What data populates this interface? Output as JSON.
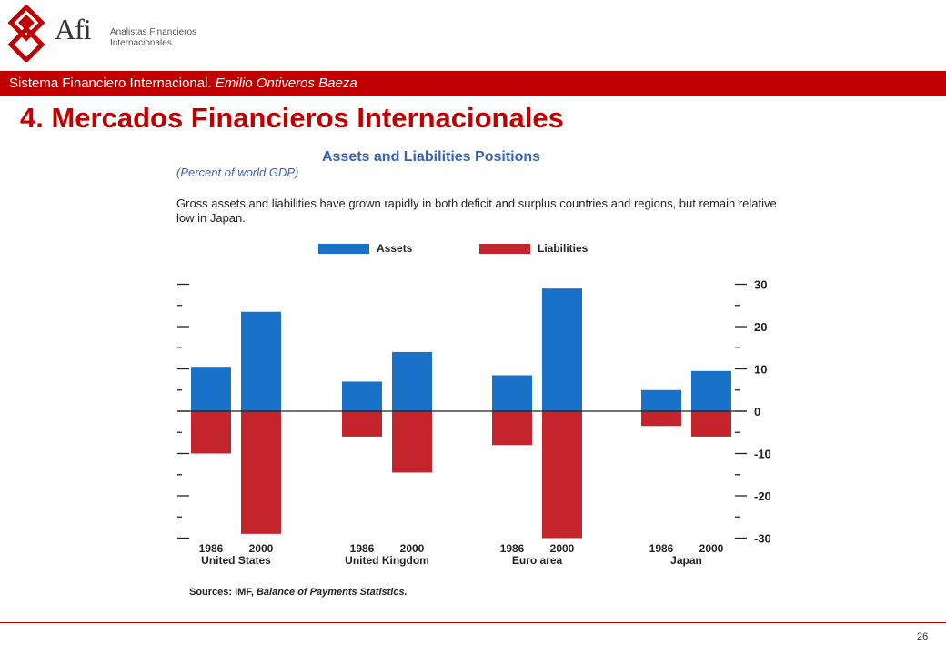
{
  "header": {
    "logo_mark": "Afi",
    "logo_line1": "Analistas Financieros",
    "logo_line2": "Internacionales",
    "bar_text": "Sistema Financiero Internacional.",
    "bar_author": "Emilio Ontiveros Baeza",
    "slide_title": "4. Mercados Financieros Internacionales"
  },
  "colors": {
    "brand_red": "#c00000",
    "assets": "#1a72c8",
    "liabilities": "#c4252d",
    "title_blue": "#3a62b8"
  },
  "chart_data": {
    "type": "bar",
    "title": "Assets and Liabilities Positions",
    "subtitle": "(Percent of world GDP)",
    "description": "Gross assets and liabilities have grown rapidly in both deficit and surplus countries and regions, but remain relative low in Japan.",
    "legend": [
      "Assets",
      "Liabilities"
    ],
    "legend_position": "top-center",
    "groups": [
      {
        "name": "United States",
        "years": [
          "1986",
          "2000"
        ],
        "assets": [
          10.5,
          23.5
        ],
        "liabilities": [
          -10,
          -29
        ]
      },
      {
        "name": "United Kingdom",
        "years": [
          "1986",
          "2000"
        ],
        "assets": [
          7,
          14
        ],
        "liabilities": [
          -6,
          -14.5
        ]
      },
      {
        "name": "Euro area",
        "years": [
          "1986",
          "2000"
        ],
        "assets": [
          8.5,
          29
        ],
        "liabilities": [
          -8,
          -30
        ]
      },
      {
        "name": "Japan",
        "years": [
          "1986",
          "2000"
        ],
        "assets": [
          5,
          9.5
        ],
        "liabilities": [
          -3.5,
          -6
        ]
      }
    ],
    "y_ticks": [
      "30",
      "20",
      "10",
      "0",
      "-10",
      "-20",
      "-30"
    ],
    "ylim": [
      -30,
      30
    ],
    "grid": false,
    "source_prefix": "Sources: IMF,",
    "source_title": "Balance of Payments Statistics."
  },
  "footer": {
    "page": "26"
  }
}
